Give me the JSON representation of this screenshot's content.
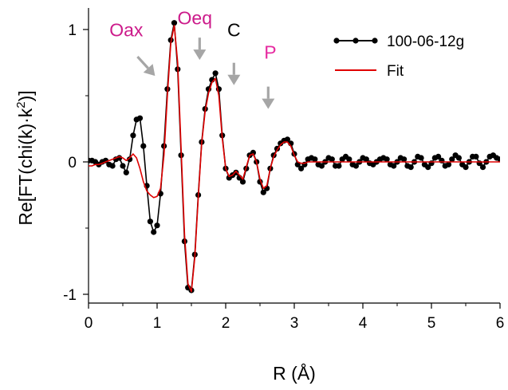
{
  "chart_data": {
    "type": "line",
    "xlabel": "R (Å)",
    "ylabel_parts": {
      "prefix": "Re[FT(chi(k)·k",
      "sup": "2",
      "suffix": ")]"
    },
    "xlim": [
      0,
      6
    ],
    "ylim": [
      -1.1,
      1.1
    ],
    "x_ticks": [
      "0",
      "1",
      "2",
      "3",
      "4",
      "5",
      "6"
    ],
    "y_ticks": [
      "-1",
      "0",
      "1"
    ],
    "legend": {
      "position": "top-right",
      "entries": [
        "100-06-12g",
        "Fit"
      ]
    },
    "grid": false,
    "series": [
      {
        "name": "100-06-12g",
        "style": "line-with-markers",
        "color": "#000000",
        "x": [
          0.0,
          0.05,
          0.1,
          0.15,
          0.2,
          0.25,
          0.3,
          0.35,
          0.4,
          0.45,
          0.5,
          0.55,
          0.6,
          0.65,
          0.7,
          0.75,
          0.8,
          0.85,
          0.9,
          0.95,
          1.0,
          1.05,
          1.1,
          1.15,
          1.2,
          1.25,
          1.3,
          1.35,
          1.4,
          1.45,
          1.5,
          1.55,
          1.6,
          1.65,
          1.7,
          1.75,
          1.8,
          1.85,
          1.9,
          1.95,
          2.0,
          2.05,
          2.1,
          2.15,
          2.2,
          2.25,
          2.3,
          2.35,
          2.4,
          2.45,
          2.5,
          2.55,
          2.6,
          2.65,
          2.7,
          2.75,
          2.8,
          2.85,
          2.9,
          2.95,
          3.0,
          3.05,
          3.1,
          3.15,
          3.2,
          3.25,
          3.3,
          3.35,
          3.4,
          3.45,
          3.5,
          3.55,
          3.6,
          3.65,
          3.7,
          3.75,
          3.8,
          3.85,
          3.9,
          3.95,
          4.0,
          4.05,
          4.1,
          4.15,
          4.2,
          4.25,
          4.3,
          4.35,
          4.4,
          4.45,
          4.5,
          4.55,
          4.6,
          4.65,
          4.7,
          4.75,
          4.8,
          4.85,
          4.9,
          4.95,
          5.0,
          5.05,
          5.1,
          5.15,
          5.2,
          5.25,
          5.3,
          5.35,
          5.4,
          5.45,
          5.5,
          5.55,
          5.6,
          5.65,
          5.7,
          5.75,
          5.8,
          5.85,
          5.9,
          5.95,
          6.0
        ],
        "y": [
          0.01,
          0.01,
          0.0,
          -0.02,
          0.0,
          0.01,
          -0.02,
          -0.03,
          0.02,
          0.03,
          -0.03,
          -0.08,
          0.02,
          0.2,
          0.32,
          0.33,
          0.12,
          -0.18,
          -0.45,
          -0.53,
          -0.48,
          -0.24,
          0.12,
          0.55,
          0.92,
          1.05,
          0.7,
          0.05,
          -0.6,
          -0.95,
          -0.97,
          -0.7,
          -0.25,
          0.15,
          0.4,
          0.55,
          0.62,
          0.67,
          0.55,
          0.2,
          -0.05,
          -0.12,
          -0.1,
          -0.08,
          -0.12,
          -0.15,
          -0.05,
          0.05,
          0.07,
          0.0,
          -0.15,
          -0.23,
          -0.2,
          -0.05,
          0.05,
          0.1,
          0.14,
          0.16,
          0.17,
          0.14,
          0.06,
          -0.02,
          -0.05,
          -0.02,
          0.02,
          0.03,
          0.02,
          -0.02,
          -0.03,
          0.0,
          0.03,
          0.02,
          -0.03,
          -0.03,
          0.02,
          0.04,
          0.02,
          -0.02,
          -0.03,
          0.0,
          0.03,
          0.02,
          -0.01,
          -0.02,
          0.0,
          0.02,
          0.03,
          0.02,
          -0.02,
          -0.03,
          0.0,
          0.03,
          0.02,
          -0.03,
          -0.04,
          0.0,
          0.04,
          0.03,
          -0.02,
          -0.04,
          -0.01,
          0.03,
          0.04,
          0.01,
          -0.03,
          -0.02,
          0.02,
          0.05,
          0.03,
          -0.02,
          -0.04,
          0.0,
          0.04,
          0.04,
          -0.01,
          -0.04,
          0.0,
          0.04,
          0.05,
          0.03,
          0.02
        ]
      },
      {
        "name": "Fit",
        "style": "line",
        "color": "#e00000",
        "x": [
          0.0,
          0.05,
          0.1,
          0.15,
          0.2,
          0.25,
          0.3,
          0.35,
          0.4,
          0.45,
          0.5,
          0.55,
          0.6,
          0.65,
          0.7,
          0.75,
          0.8,
          0.85,
          0.9,
          0.95,
          1.0,
          1.05,
          1.1,
          1.15,
          1.2,
          1.25,
          1.3,
          1.35,
          1.4,
          1.45,
          1.5,
          1.55,
          1.6,
          1.65,
          1.7,
          1.75,
          1.8,
          1.85,
          1.9,
          1.95,
          2.0,
          2.05,
          2.1,
          2.15,
          2.2,
          2.25,
          2.3,
          2.35,
          2.4,
          2.45,
          2.5,
          2.55,
          2.6,
          2.65,
          2.7,
          2.75,
          2.8,
          2.85,
          2.9,
          2.95,
          3.0,
          3.05,
          3.1,
          3.15,
          3.2,
          3.3,
          3.4,
          3.5,
          3.6,
          3.7,
          3.8,
          3.9,
          4.0,
          4.2,
          4.4,
          4.6,
          4.8,
          5.0,
          5.2,
          5.4,
          5.6,
          5.8,
          6.0
        ],
        "y": [
          -0.03,
          -0.03,
          -0.02,
          -0.02,
          -0.01,
          0.0,
          0.01,
          0.02,
          0.03,
          0.04,
          0.03,
          0.01,
          0.03,
          0.06,
          0.03,
          -0.05,
          -0.15,
          -0.22,
          -0.25,
          -0.27,
          -0.26,
          -0.2,
          0.05,
          0.5,
          0.9,
          1.03,
          0.75,
          0.1,
          -0.55,
          -0.92,
          -0.98,
          -0.72,
          -0.27,
          0.14,
          0.38,
          0.52,
          0.6,
          0.63,
          0.5,
          0.18,
          -0.05,
          -0.11,
          -0.1,
          -0.07,
          -0.1,
          -0.13,
          -0.04,
          0.05,
          0.06,
          0.0,
          -0.13,
          -0.2,
          -0.18,
          -0.05,
          0.04,
          0.09,
          0.13,
          0.15,
          0.15,
          0.12,
          0.05,
          0.0,
          -0.01,
          -0.01,
          0.0,
          0.0,
          0.0,
          0.0,
          0.0,
          0.0,
          0.0,
          0.0,
          0.0,
          0.0,
          0.0,
          0.0,
          0.0,
          0.0,
          0.0,
          0.0,
          0.0,
          0.0,
          0.0
        ]
      }
    ],
    "annotations": [
      {
        "text": "Oax",
        "color": "#cc1a8a",
        "x": 0.55,
        "y": 0.95,
        "arrow_x": 0.97,
        "arrow_y": 0.65
      },
      {
        "text": "Oeq",
        "color": "#cc1a8a",
        "x": 1.55,
        "y": 1.04,
        "arrow_x": 1.62,
        "arrow_y": 0.77
      },
      {
        "text": "C",
        "color": "#000000",
        "x": 2.12,
        "y": 0.95,
        "arrow_x": 2.12,
        "arrow_y": 0.58
      },
      {
        "text": "P",
        "color": "#e62aa0",
        "x": 2.65,
        "y": 0.78,
        "arrow_x": 2.62,
        "arrow_y": 0.4
      }
    ]
  }
}
